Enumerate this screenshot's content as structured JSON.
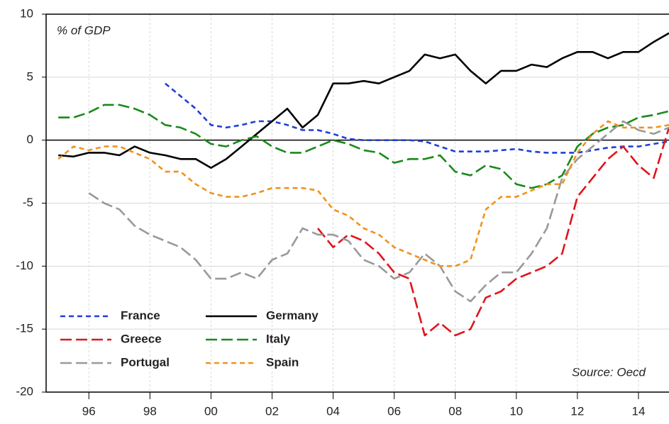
{
  "chart_data": {
    "type": "line",
    "annotations": [
      "% of GDP",
      "Source: Oecd"
    ],
    "x": [
      1995,
      1995.5,
      1996,
      1996.5,
      1997,
      1997.5,
      1998,
      1998.5,
      1999,
      1999.5,
      2000,
      2000.5,
      2001,
      2001.5,
      2002,
      2002.5,
      2003,
      2003.5,
      2004,
      2004.5,
      2005,
      2005.5,
      2006,
      2006.5,
      2007,
      2007.5,
      2008,
      2008.5,
      2009,
      2009.5,
      2010,
      2010.5,
      2011,
      2011.5,
      2012,
      2012.5,
      2013,
      2013.5,
      2014,
      2014.5,
      2015
    ],
    "xlim": [
      1994.6,
      2015.0
    ],
    "xticks": [
      {
        "value": 1996,
        "label": "96"
      },
      {
        "value": 1998,
        "label": "98"
      },
      {
        "value": 2000,
        "label": "00"
      },
      {
        "value": 2002,
        "label": "02"
      },
      {
        "value": 2004,
        "label": "04"
      },
      {
        "value": 2006,
        "label": "06"
      },
      {
        "value": 2008,
        "label": "08"
      },
      {
        "value": 2010,
        "label": "10"
      },
      {
        "value": 2012,
        "label": "12"
      },
      {
        "value": 2014,
        "label": "14"
      }
    ],
    "ylim": [
      -20,
      10
    ],
    "yticks": [
      -20,
      -15,
      -10,
      -5,
      0,
      5,
      10
    ],
    "grid": true,
    "legend": "lower left",
    "series": [
      {
        "name": "France",
        "color": "#1f3fd6",
        "dash": "short",
        "values": [
          null,
          null,
          null,
          null,
          null,
          null,
          null,
          4.5,
          3.5,
          2.5,
          1.2,
          1.0,
          1.2,
          1.5,
          1.5,
          1.2,
          0.8,
          0.8,
          0.5,
          0.1,
          0,
          0,
          0,
          0,
          -0.1,
          -0.5,
          -0.9,
          -0.9,
          -0.9,
          -0.8,
          -0.7,
          -0.9,
          -1.0,
          -1.0,
          -1.0,
          -0.8,
          -0.6,
          -0.5,
          -0.5,
          -0.3,
          -0.1
        ]
      },
      {
        "name": "Germany",
        "color": "#000000",
        "dash": "solid",
        "values": [
          -1.2,
          -1.3,
          -1.0,
          -1.0,
          -1.2,
          -0.5,
          -1.0,
          -1.2,
          -1.5,
          -1.5,
          -2.2,
          -1.5,
          -0.5,
          0.5,
          1.5,
          2.5,
          1.0,
          2.0,
          4.5,
          4.5,
          4.7,
          4.5,
          5.0,
          5.5,
          6.8,
          6.5,
          6.8,
          5.5,
          4.5,
          5.5,
          5.5,
          6.0,
          5.8,
          6.5,
          7.0,
          7.0,
          6.5,
          7.0,
          7.0,
          7.8,
          8.5
        ]
      },
      {
        "name": "Greece",
        "color": "#e0141c",
        "dash": "long",
        "values": [
          null,
          null,
          null,
          null,
          null,
          null,
          null,
          null,
          null,
          null,
          null,
          null,
          null,
          null,
          null,
          null,
          null,
          -7.0,
          -8.5,
          -7.5,
          -8.0,
          -9.0,
          -10.5,
          -11.0,
          -15.5,
          -14.5,
          -15.5,
          -15.0,
          -12.5,
          -12.0,
          -11.0,
          -10.5,
          -10.0,
          -9.0,
          -4.5,
          -3.0,
          -1.5,
          -0.5,
          -2.0,
          -3.0,
          1.0
        ]
      },
      {
        "name": "Italy",
        "color": "#1a8a1a",
        "dash": "long",
        "values": [
          1.8,
          1.8,
          2.2,
          2.8,
          2.8,
          2.5,
          2.0,
          1.2,
          1.0,
          0.5,
          -0.3,
          -0.5,
          0,
          0.3,
          -0.5,
          -1.0,
          -1.0,
          -0.5,
          0,
          -0.3,
          -0.8,
          -1.0,
          -1.8,
          -1.5,
          -1.5,
          -1.2,
          -2.5,
          -2.8,
          -2.0,
          -2.3,
          -3.5,
          -3.8,
          -3.5,
          -2.8,
          -0.5,
          0.5,
          1.0,
          1.2,
          1.8,
          2.0,
          2.3
        ]
      },
      {
        "name": "Portugal",
        "color": "#999999",
        "dash": "long",
        "values": [
          null,
          null,
          -4.2,
          -5.0,
          -5.5,
          -6.8,
          -7.5,
          -8.0,
          -8.5,
          -9.5,
          -11.0,
          -11.0,
          -10.5,
          -11.0,
          -9.5,
          -9.0,
          -7.0,
          -7.5,
          -7.5,
          -8.0,
          -9.5,
          -10.0,
          -11.0,
          -10.5,
          -9.0,
          -10.0,
          -12.0,
          -12.8,
          -11.5,
          -10.5,
          -10.5,
          -9.0,
          -7.0,
          -3.0,
          -1.5,
          -0.5,
          0.5,
          1.5,
          0.8,
          0.5,
          1.0
        ]
      },
      {
        "name": "Spain",
        "color": "#f0921e",
        "dash": "short",
        "values": [
          -1.5,
          -0.5,
          -0.8,
          -0.5,
          -0.5,
          -1.0,
          -1.5,
          -2.5,
          -2.5,
          -3.5,
          -4.2,
          -4.5,
          -4.5,
          -4.2,
          -3.8,
          -3.8,
          -3.8,
          -4.0,
          -5.5,
          -6.0,
          -7.0,
          -7.5,
          -8.5,
          -9.0,
          -9.5,
          -10.0,
          -10.0,
          -9.5,
          -5.5,
          -4.5,
          -4.5,
          -4.0,
          -3.5,
          -3.5,
          -1.0,
          0.5,
          1.5,
          1.0,
          1.0,
          1.0,
          1.2
        ]
      }
    ]
  }
}
